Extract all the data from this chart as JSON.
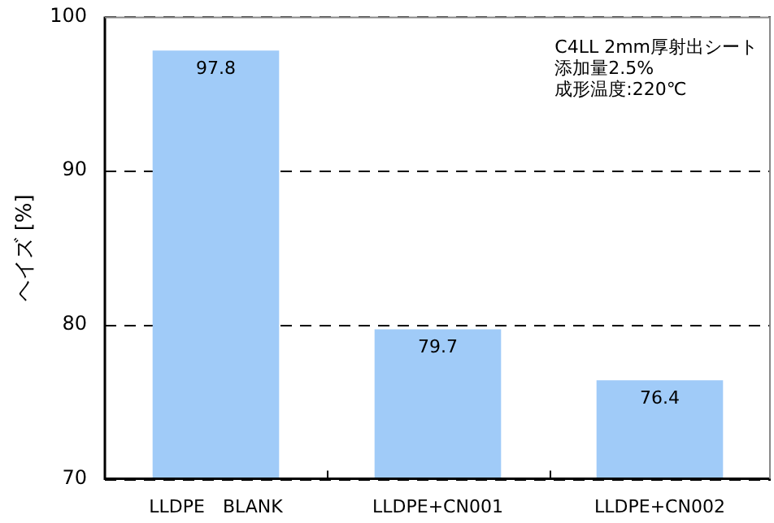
{
  "chart_data": {
    "type": "bar",
    "ylabel": "ヘイズ [%]",
    "categories": [
      "LLDPE　BLANK",
      "LLDPE+CN001",
      "LLDPE+CN002"
    ],
    "values": [
      97.8,
      79.7,
      76.4
    ],
    "color": "#a0cbf8",
    "ylim": [
      70,
      100
    ],
    "yticks": [
      70,
      80,
      90,
      100
    ],
    "grid": "y",
    "data_labels": true,
    "annotations": [
      "C4LL 2mm厚射出シート",
      "添加量2.5%",
      "成形温度:220℃"
    ]
  }
}
